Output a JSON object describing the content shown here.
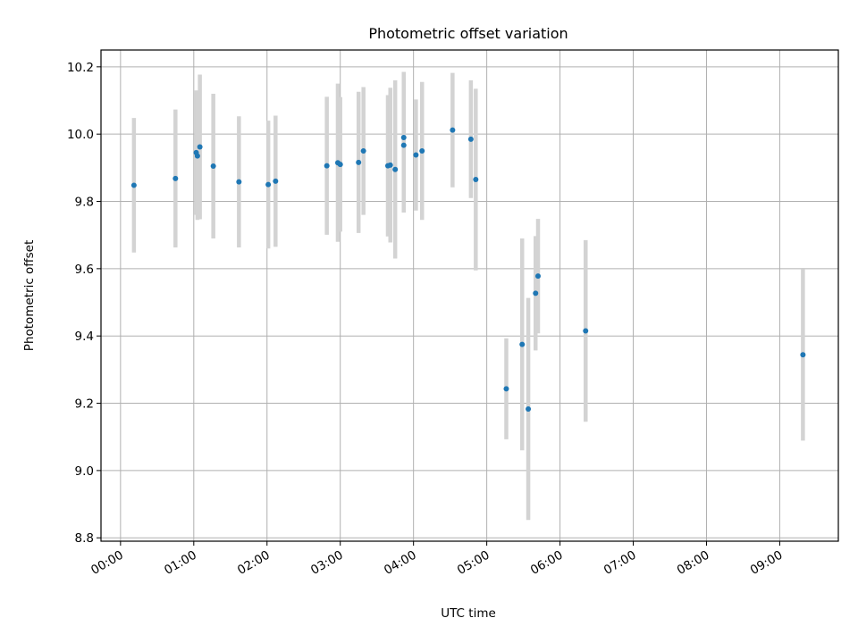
{
  "chart_data": {
    "type": "scatter",
    "title": "Photometric offset variation",
    "xlabel": "UTC time",
    "ylabel": "Photometric offset",
    "x_ticks": [
      "00:00",
      "01:00",
      "02:00",
      "03:00",
      "04:00",
      "05:00",
      "06:00",
      "07:00",
      "08:00",
      "09:00"
    ],
    "y_ticks": [
      "8.8",
      "9.0",
      "9.2",
      "9.4",
      "9.6",
      "9.8",
      "10.0",
      "10.2"
    ],
    "xlim": [
      "-00:16",
      "09:48"
    ],
    "ylim": [
      8.79,
      10.25
    ],
    "grid": true,
    "colors": {
      "point": "#1f77b4",
      "errorbar": "#d3d3d3",
      "grid": "#b0b0b0"
    },
    "points": [
      {
        "x": "00:11",
        "y": 9.848,
        "err": 0.2
      },
      {
        "x": "00:45",
        "y": 9.868,
        "err": 0.205
      },
      {
        "x": "01:02",
        "y": 9.945,
        "err": 0.185
      },
      {
        "x": "01:03",
        "y": 9.935,
        "err": 0.19
      },
      {
        "x": "01:05",
        "y": 9.962,
        "err": 0.215
      },
      {
        "x": "01:16",
        "y": 9.905,
        "err": 0.215
      },
      {
        "x": "01:37",
        "y": 9.858,
        "err": 0.195
      },
      {
        "x": "02:01",
        "y": 9.85,
        "err": 0.19
      },
      {
        "x": "02:07",
        "y": 9.86,
        "err": 0.195
      },
      {
        "x": "02:49",
        "y": 9.906,
        "err": 0.205
      },
      {
        "x": "02:58",
        "y": 9.915,
        "err": 0.235
      },
      {
        "x": "03:00",
        "y": 9.91,
        "err": 0.2
      },
      {
        "x": "03:15",
        "y": 9.916,
        "err": 0.21
      },
      {
        "x": "03:19",
        "y": 9.95,
        "err": 0.19
      },
      {
        "x": "03:39",
        "y": 9.906,
        "err": 0.21
      },
      {
        "x": "03:41",
        "y": 9.908,
        "err": 0.23
      },
      {
        "x": "03:45",
        "y": 9.895,
        "err": 0.265
      },
      {
        "x": "03:52",
        "y": 9.99,
        "err": 0.195
      },
      {
        "x": "03:52",
        "y": 9.967,
        "err": 0.2
      },
      {
        "x": "04:02",
        "y": 9.938,
        "err": 0.165
      },
      {
        "x": "04:07",
        "y": 9.95,
        "err": 0.205
      },
      {
        "x": "04:32",
        "y": 10.012,
        "err": 0.17
      },
      {
        "x": "04:47",
        "y": 9.985,
        "err": 0.175
      },
      {
        "x": "04:51",
        "y": 9.865,
        "err": 0.27
      },
      {
        "x": "05:16",
        "y": 9.243,
        "err": 0.15
      },
      {
        "x": "05:29",
        "y": 9.375,
        "err": 0.315
      },
      {
        "x": "05:34",
        "y": 9.183,
        "err": 0.33
      },
      {
        "x": "05:40",
        "y": 9.527,
        "err": 0.17
      },
      {
        "x": "05:42",
        "y": 9.578,
        "err": 0.17
      },
      {
        "x": "06:21",
        "y": 9.415,
        "err": 0.27
      },
      {
        "x": "09:19",
        "y": 9.344,
        "err": 0.255
      }
    ]
  }
}
